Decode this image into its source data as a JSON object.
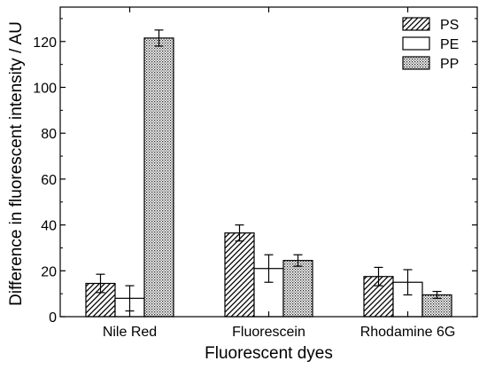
{
  "chart_data": {
    "type": "bar",
    "title": "",
    "xlabel": "Fluorescent dyes",
    "ylabel": "Difference in fluorescent intensity / AU",
    "categories": [
      "Nile Red",
      "Fluorescein",
      "Rhodamine 6G"
    ],
    "ylim": [
      0,
      135
    ],
    "yticks": [
      0,
      20,
      40,
      60,
      80,
      100,
      120
    ],
    "grid": false,
    "legend_position": "top-right",
    "series": [
      {
        "name": "PS",
        "pattern": "diagonal-hatch",
        "values": [
          14.5,
          36.5,
          17.5
        ],
        "errors": [
          4.0,
          3.5,
          4.0
        ]
      },
      {
        "name": "PE",
        "pattern": "open",
        "values": [
          8.0,
          21.0,
          15.0
        ],
        "errors": [
          5.5,
          6.0,
          5.5
        ]
      },
      {
        "name": "PP",
        "pattern": "dotted",
        "values": [
          121.5,
          24.5,
          9.5
        ],
        "errors": [
          3.5,
          2.5,
          1.5
        ]
      }
    ]
  }
}
